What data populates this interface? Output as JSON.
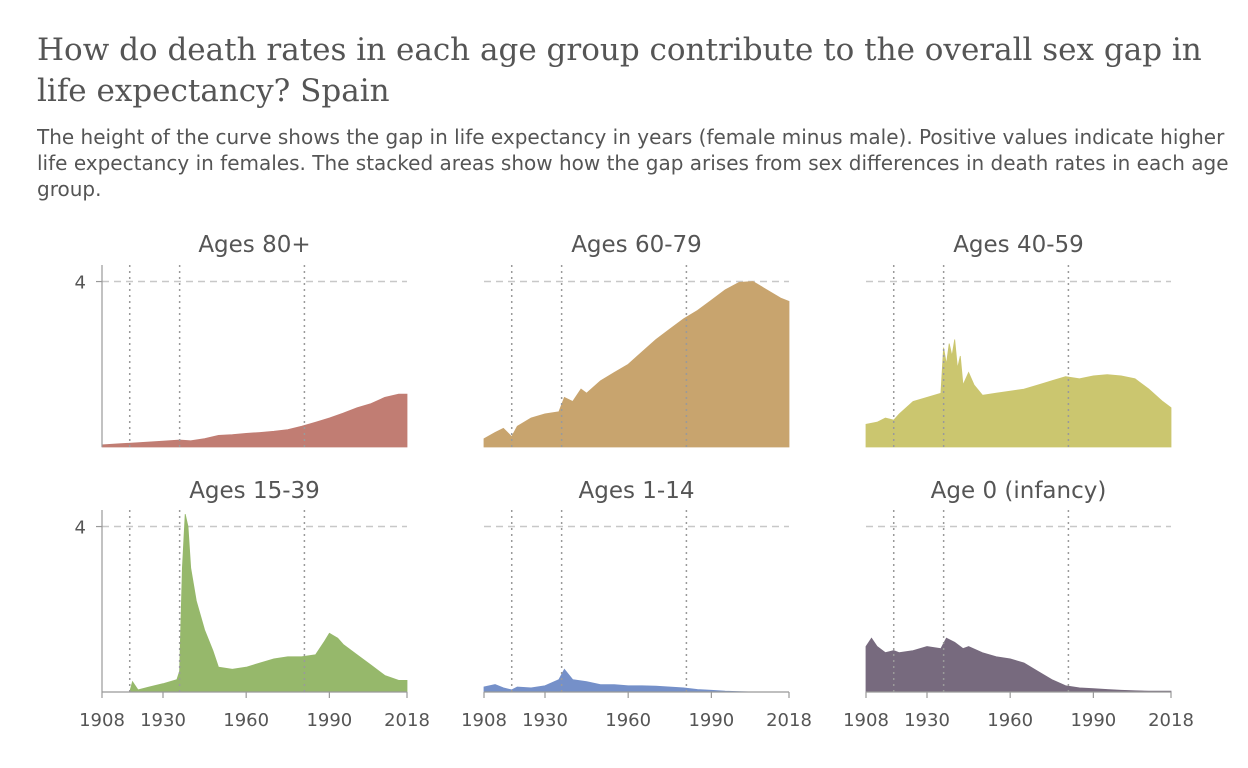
{
  "title": "How do death rates in each age group contribute to the overall sex gap in life expectancy? Spain",
  "subtitle_lines": [
    "The height of the curve shows the gap in life expectancy in years (female minus male). Positive values indicate higher",
    "life expectancy in females. The stacked areas show how the gap arises from sex differences in death rates in each age",
    "group."
  ],
  "chart_data": {
    "type": "area",
    "x_range": [
      1908,
      2018
    ],
    "y_range": [
      0,
      4.4
    ],
    "x_ticks": [
      1908,
      1930,
      1960,
      1990,
      2018
    ],
    "y_ticks": [
      4
    ],
    "reference_years": [
      1918,
      1936,
      1981
    ],
    "grid": "dashed horizontal at y=4, dotted vertical at reference years",
    "panels": [
      {
        "name": "Ages 80+",
        "color": "#c17d73",
        "points": [
          [
            1908,
            0.05
          ],
          [
            1915,
            0.08
          ],
          [
            1920,
            0.1
          ],
          [
            1925,
            0.12
          ],
          [
            1930,
            0.14
          ],
          [
            1936,
            0.17
          ],
          [
            1940,
            0.15
          ],
          [
            1945,
            0.2
          ],
          [
            1950,
            0.28
          ],
          [
            1955,
            0.3
          ],
          [
            1960,
            0.33
          ],
          [
            1965,
            0.35
          ],
          [
            1970,
            0.38
          ],
          [
            1975,
            0.42
          ],
          [
            1980,
            0.5
          ],
          [
            1985,
            0.6
          ],
          [
            1990,
            0.7
          ],
          [
            1995,
            0.82
          ],
          [
            2000,
            0.95
          ],
          [
            2005,
            1.05
          ],
          [
            2010,
            1.2
          ],
          [
            2015,
            1.28
          ],
          [
            2018,
            1.28
          ]
        ]
      },
      {
        "name": "Ages 60-79",
        "color": "#c8a46e",
        "points": [
          [
            1908,
            0.2
          ],
          [
            1912,
            0.35
          ],
          [
            1915,
            0.45
          ],
          [
            1918,
            0.25
          ],
          [
            1920,
            0.5
          ],
          [
            1925,
            0.7
          ],
          [
            1930,
            0.8
          ],
          [
            1935,
            0.85
          ],
          [
            1937,
            1.2
          ],
          [
            1940,
            1.1
          ],
          [
            1943,
            1.4
          ],
          [
            1945,
            1.3
          ],
          [
            1950,
            1.6
          ],
          [
            1955,
            1.8
          ],
          [
            1960,
            2.0
          ],
          [
            1965,
            2.3
          ],
          [
            1970,
            2.6
          ],
          [
            1975,
            2.85
          ],
          [
            1980,
            3.1
          ],
          [
            1985,
            3.3
          ],
          [
            1990,
            3.55
          ],
          [
            1995,
            3.8
          ],
          [
            2000,
            3.98
          ],
          [
            2005,
            4.0
          ],
          [
            2010,
            3.8
          ],
          [
            2015,
            3.6
          ],
          [
            2018,
            3.52
          ]
        ]
      },
      {
        "name": "Ages 40-59",
        "color": "#cbc66f",
        "points": [
          [
            1908,
            0.55
          ],
          [
            1912,
            0.6
          ],
          [
            1915,
            0.7
          ],
          [
            1918,
            0.65
          ],
          [
            1920,
            0.8
          ],
          [
            1925,
            1.1
          ],
          [
            1930,
            1.2
          ],
          [
            1935,
            1.3
          ],
          [
            1936,
            2.4
          ],
          [
            1937,
            2.0
          ],
          [
            1938,
            2.5
          ],
          [
            1939,
            2.2
          ],
          [
            1940,
            2.6
          ],
          [
            1941,
            1.9
          ],
          [
            1942,
            2.2
          ],
          [
            1943,
            1.5
          ],
          [
            1945,
            1.8
          ],
          [
            1947,
            1.5
          ],
          [
            1950,
            1.25
          ],
          [
            1955,
            1.3
          ],
          [
            1960,
            1.35
          ],
          [
            1965,
            1.4
          ],
          [
            1970,
            1.5
          ],
          [
            1975,
            1.6
          ],
          [
            1980,
            1.7
          ],
          [
            1985,
            1.65
          ],
          [
            1990,
            1.72
          ],
          [
            1995,
            1.75
          ],
          [
            2000,
            1.72
          ],
          [
            2005,
            1.65
          ],
          [
            2010,
            1.4
          ],
          [
            2015,
            1.1
          ],
          [
            2018,
            0.95
          ]
        ]
      },
      {
        "name": "Ages 15-39",
        "color": "#96b86b",
        "points": [
          [
            1908,
            0.0
          ],
          [
            1910,
            0.0
          ],
          [
            1918,
            0.0
          ],
          [
            1919,
            0.25
          ],
          [
            1921,
            0.05
          ],
          [
            1925,
            0.12
          ],
          [
            1930,
            0.2
          ],
          [
            1935,
            0.3
          ],
          [
            1936,
            0.5
          ],
          [
            1937,
            3.0
          ],
          [
            1938,
            4.3
          ],
          [
            1939,
            4.0
          ],
          [
            1940,
            3.0
          ],
          [
            1942,
            2.2
          ],
          [
            1945,
            1.5
          ],
          [
            1948,
            1.0
          ],
          [
            1950,
            0.6
          ],
          [
            1955,
            0.55
          ],
          [
            1960,
            0.6
          ],
          [
            1965,
            0.7
          ],
          [
            1970,
            0.8
          ],
          [
            1975,
            0.85
          ],
          [
            1980,
            0.85
          ],
          [
            1985,
            0.9
          ],
          [
            1988,
            1.2
          ],
          [
            1990,
            1.42
          ],
          [
            1993,
            1.3
          ],
          [
            1995,
            1.15
          ],
          [
            2000,
            0.9
          ],
          [
            2005,
            0.65
          ],
          [
            2010,
            0.4
          ],
          [
            2015,
            0.28
          ],
          [
            2018,
            0.28
          ]
        ]
      },
      {
        "name": "Ages 1-14",
        "color": "#7590c9",
        "points": [
          [
            1908,
            0.12
          ],
          [
            1912,
            0.18
          ],
          [
            1915,
            0.1
          ],
          [
            1918,
            0.05
          ],
          [
            1920,
            0.12
          ],
          [
            1925,
            0.1
          ],
          [
            1930,
            0.15
          ],
          [
            1935,
            0.3
          ],
          [
            1937,
            0.55
          ],
          [
            1940,
            0.3
          ],
          [
            1945,
            0.25
          ],
          [
            1950,
            0.18
          ],
          [
            1955,
            0.18
          ],
          [
            1960,
            0.15
          ],
          [
            1965,
            0.15
          ],
          [
            1970,
            0.14
          ],
          [
            1975,
            0.12
          ],
          [
            1980,
            0.1
          ],
          [
            1985,
            0.06
          ],
          [
            1990,
            0.04
          ],
          [
            1995,
            0.02
          ],
          [
            2000,
            0.01
          ],
          [
            2005,
            0.0
          ],
          [
            2018,
            0.0
          ]
        ]
      },
      {
        "name": "Age 0 (infancy)",
        "color": "#776a7e",
        "points": [
          [
            1908,
            1.1
          ],
          [
            1910,
            1.3
          ],
          [
            1912,
            1.1
          ],
          [
            1915,
            0.95
          ],
          [
            1918,
            1.0
          ],
          [
            1920,
            0.95
          ],
          [
            1925,
            1.0
          ],
          [
            1930,
            1.1
          ],
          [
            1935,
            1.05
          ],
          [
            1937,
            1.3
          ],
          [
            1940,
            1.2
          ],
          [
            1943,
            1.05
          ],
          [
            1945,
            1.1
          ],
          [
            1950,
            0.95
          ],
          [
            1955,
            0.85
          ],
          [
            1960,
            0.8
          ],
          [
            1965,
            0.7
          ],
          [
            1970,
            0.5
          ],
          [
            1975,
            0.3
          ],
          [
            1980,
            0.15
          ],
          [
            1985,
            0.1
          ],
          [
            1990,
            0.08
          ],
          [
            1995,
            0.06
          ],
          [
            2000,
            0.04
          ],
          [
            2005,
            0.03
          ],
          [
            2010,
            0.02
          ],
          [
            2018,
            0.02
          ]
        ]
      }
    ]
  }
}
